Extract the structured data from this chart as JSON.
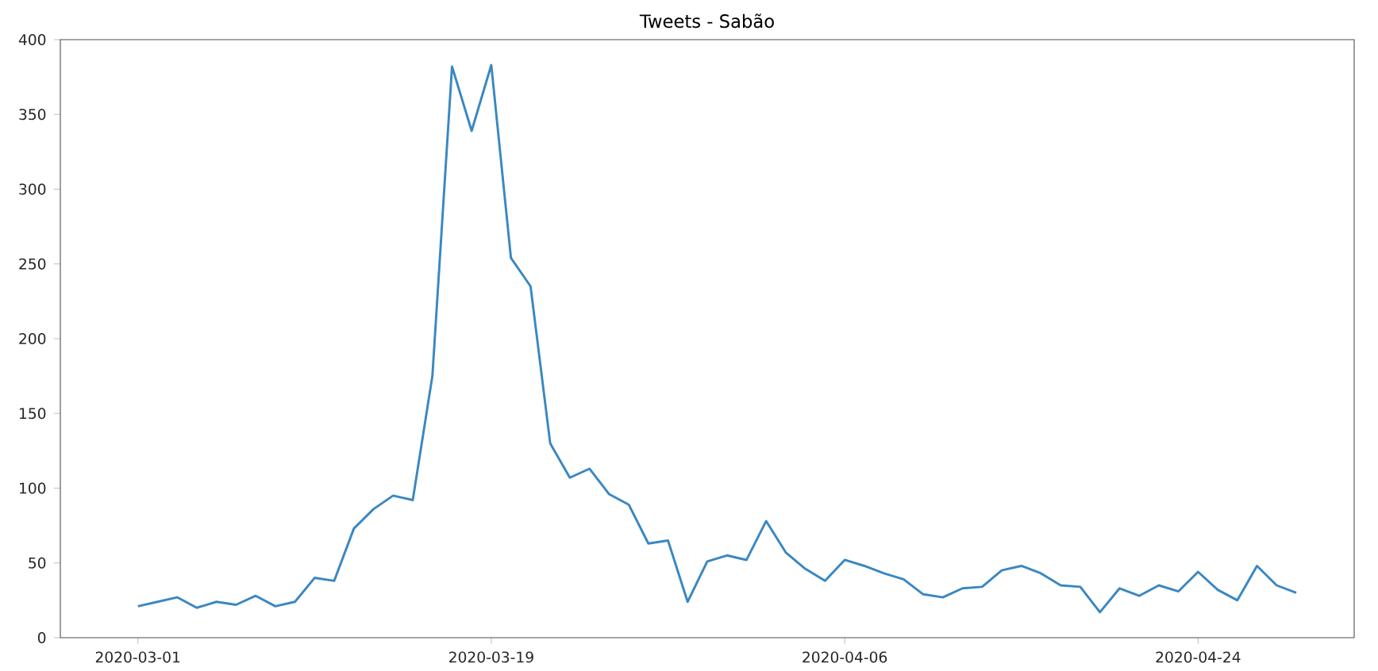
{
  "chart_data": {
    "type": "line",
    "title": "Tweets - Sabão",
    "x": [
      "2020-03-01",
      "2020-03-02",
      "2020-03-03",
      "2020-03-04",
      "2020-03-05",
      "2020-03-06",
      "2020-03-07",
      "2020-03-08",
      "2020-03-09",
      "2020-03-10",
      "2020-03-11",
      "2020-03-12",
      "2020-03-13",
      "2020-03-14",
      "2020-03-15",
      "2020-03-16",
      "2020-03-17",
      "2020-03-18",
      "2020-03-19",
      "2020-03-20",
      "2020-03-21",
      "2020-03-22",
      "2020-03-23",
      "2020-03-24",
      "2020-03-25",
      "2020-03-26",
      "2020-03-27",
      "2020-03-28",
      "2020-03-29",
      "2020-03-30",
      "2020-03-31",
      "2020-04-01",
      "2020-04-02",
      "2020-04-03",
      "2020-04-04",
      "2020-04-05",
      "2020-04-06",
      "2020-04-07",
      "2020-04-08",
      "2020-04-09",
      "2020-04-10",
      "2020-04-11",
      "2020-04-12",
      "2020-04-13",
      "2020-04-14",
      "2020-04-15",
      "2020-04-16",
      "2020-04-17",
      "2020-04-18",
      "2020-04-19",
      "2020-04-20",
      "2020-04-21",
      "2020-04-22",
      "2020-04-23",
      "2020-04-24",
      "2020-04-25",
      "2020-04-26",
      "2020-04-27",
      "2020-04-28",
      "2020-04-29"
    ],
    "values": [
      21,
      24,
      27,
      20,
      24,
      22,
      28,
      21,
      24,
      40,
      38,
      73,
      86,
      95,
      92,
      175,
      382,
      339,
      383,
      254,
      235,
      130,
      107,
      113,
      96,
      89,
      63,
      65,
      24,
      51,
      55,
      52,
      78,
      57,
      46,
      38,
      52,
      48,
      43,
      39,
      29,
      27,
      33,
      34,
      45,
      48,
      43,
      35,
      34,
      17,
      33,
      28,
      35,
      31,
      44,
      32,
      25,
      48,
      35,
      30
    ],
    "color": "#3a87c2",
    "line_style": "solid",
    "xlim": [
      "2020-02-26T01:12",
      "2020-05-01T22:48"
    ],
    "xticks": [
      "2020-03-01",
      "2020-03-19",
      "2020-04-06",
      "2020-04-24"
    ],
    "ylim": [
      0,
      400
    ],
    "yticks": [
      0,
      50,
      100,
      150,
      200,
      250,
      300,
      350,
      400
    ]
  }
}
